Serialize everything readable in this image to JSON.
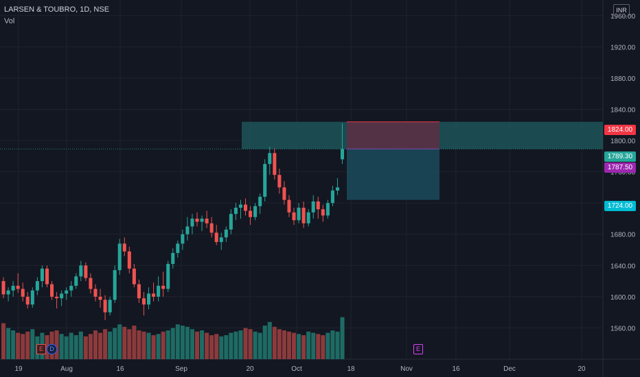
{
  "header": {
    "symbol_line": "LARSEN & TOUBRO, 1D, NSE",
    "vol_label": "Vol"
  },
  "currency_label": "INR",
  "colors": {
    "background": "#131722",
    "up": "#26a69a",
    "down": "#ef5350",
    "vol_up": "#1e6b64",
    "vol_down": "#8c3a3c",
    "target_zone": "#1f5d60",
    "stop_zone": "#5a3045",
    "accent_purple": "#9c27b0"
  },
  "y_axis": {
    "min": 1520,
    "max": 1980,
    "ticks": [
      "1560.00",
      "1600.00",
      "1640.00",
      "1680.00",
      "1720.00",
      "1760.00",
      "1800.00",
      "1840.00",
      "1880.00",
      "1920.00",
      "1960.00"
    ]
  },
  "x_axis": {
    "ticks": [
      "19",
      "Aug",
      "16",
      "Sep",
      "20",
      "Oct",
      "18",
      "Nov",
      "16",
      "Dec",
      "20"
    ]
  },
  "price_tags": [
    {
      "label": "1824.00",
      "value": 1824,
      "color": "#f23645"
    },
    {
      "label": "1789.30",
      "value": 1789.3,
      "color": "#26a69a"
    },
    {
      "label": "1787.50",
      "value": 1787.5,
      "color": "#9c27b0"
    },
    {
      "label": "1724.00",
      "value": 1724,
      "color": "#00bcd4"
    }
  ],
  "events": [
    {
      "label": "E",
      "kind": "earnings",
      "color": "#ef5350"
    },
    {
      "label": "D",
      "kind": "dividend",
      "color": "#2962ff"
    },
    {
      "label": "E",
      "kind": "earnings-upcoming",
      "color": "#e040fb"
    }
  ],
  "chart_data": {
    "type": "candlestick",
    "title": "LARSEN & TOUBRO, 1D, NSE",
    "ylim": [
      1520,
      1980
    ],
    "candles": [
      [
        1620,
        1625,
        1598,
        1603
      ],
      [
        1603,
        1612,
        1594,
        1608
      ],
      [
        1608,
        1620,
        1600,
        1614
      ],
      [
        1614,
        1630,
        1605,
        1610
      ],
      [
        1610,
        1618,
        1594,
        1600
      ],
      [
        1600,
        1606,
        1585,
        1590
      ],
      [
        1590,
        1612,
        1586,
        1608
      ],
      [
        1608,
        1625,
        1602,
        1620
      ],
      [
        1620,
        1640,
        1612,
        1636
      ],
      [
        1636,
        1640,
        1612,
        1616
      ],
      [
        1616,
        1620,
        1596,
        1600
      ],
      [
        1600,
        1606,
        1585,
        1598
      ],
      [
        1598,
        1608,
        1588,
        1604
      ],
      [
        1604,
        1612,
        1596,
        1608
      ],
      [
        1608,
        1620,
        1600,
        1614
      ],
      [
        1614,
        1630,
        1610,
        1626
      ],
      [
        1626,
        1646,
        1620,
        1640
      ],
      [
        1640,
        1644,
        1620,
        1624
      ],
      [
        1624,
        1630,
        1604,
        1610
      ],
      [
        1610,
        1616,
        1594,
        1600
      ],
      [
        1600,
        1610,
        1586,
        1596
      ],
      [
        1596,
        1602,
        1570,
        1580
      ],
      [
        1580,
        1600,
        1576,
        1596
      ],
      [
        1596,
        1640,
        1592,
        1634
      ],
      [
        1634,
        1674,
        1628,
        1668
      ],
      [
        1668,
        1676,
        1652,
        1658
      ],
      [
        1658,
        1664,
        1630,
        1636
      ],
      [
        1636,
        1642,
        1612,
        1616
      ],
      [
        1616,
        1622,
        1592,
        1598
      ],
      [
        1598,
        1606,
        1576,
        1590
      ],
      [
        1590,
        1612,
        1584,
        1604
      ],
      [
        1604,
        1618,
        1594,
        1600
      ],
      [
        1600,
        1626,
        1594,
        1614
      ],
      [
        1614,
        1632,
        1600,
        1610
      ],
      [
        1610,
        1646,
        1606,
        1642
      ],
      [
        1642,
        1662,
        1636,
        1656
      ],
      [
        1656,
        1672,
        1650,
        1668
      ],
      [
        1668,
        1686,
        1660,
        1680
      ],
      [
        1680,
        1702,
        1672,
        1690
      ],
      [
        1690,
        1706,
        1680,
        1700
      ],
      [
        1700,
        1708,
        1690,
        1696
      ],
      [
        1696,
        1704,
        1684,
        1700
      ],
      [
        1700,
        1710,
        1688,
        1694
      ],
      [
        1694,
        1702,
        1676,
        1682
      ],
      [
        1682,
        1692,
        1666,
        1670
      ],
      [
        1670,
        1682,
        1660,
        1676
      ],
      [
        1676,
        1690,
        1670,
        1686
      ],
      [
        1686,
        1712,
        1680,
        1706
      ],
      [
        1706,
        1720,
        1698,
        1714
      ],
      [
        1714,
        1724,
        1700,
        1718
      ],
      [
        1718,
        1726,
        1704,
        1710
      ],
      [
        1710,
        1716,
        1692,
        1702
      ],
      [
        1702,
        1720,
        1698,
        1716
      ],
      [
        1716,
        1732,
        1706,
        1728
      ],
      [
        1728,
        1776,
        1722,
        1770
      ],
      [
        1770,
        1792,
        1756,
        1784
      ],
      [
        1784,
        1790,
        1750,
        1756
      ],
      [
        1756,
        1764,
        1732,
        1740
      ],
      [
        1740,
        1748,
        1718,
        1724
      ],
      [
        1724,
        1730,
        1702,
        1708
      ],
      [
        1708,
        1714,
        1692,
        1698
      ],
      [
        1698,
        1720,
        1694,
        1714
      ],
      [
        1714,
        1722,
        1688,
        1694
      ],
      [
        1694,
        1712,
        1690,
        1708
      ],
      [
        1708,
        1730,
        1700,
        1722
      ],
      [
        1722,
        1728,
        1700,
        1712
      ],
      [
        1712,
        1718,
        1696,
        1704
      ],
      [
        1704,
        1724,
        1700,
        1720
      ],
      [
        1720,
        1742,
        1716,
        1736
      ],
      [
        1736,
        1752,
        1730,
        1740
      ],
      [
        1776,
        1822,
        1770,
        1789.3
      ]
    ],
    "volumes": [
      60,
      52,
      48,
      44,
      42,
      46,
      50,
      38,
      44,
      40,
      46,
      48,
      42,
      38,
      44,
      40,
      46,
      38,
      42,
      48,
      44,
      50,
      46,
      52,
      58,
      54,
      50,
      56,
      48,
      46,
      44,
      40,
      42,
      46,
      48,
      52,
      58,
      56,
      54,
      50,
      46,
      48,
      44,
      40,
      42,
      38,
      40,
      44,
      46,
      48,
      52,
      50,
      46,
      44,
      56,
      62,
      54,
      50,
      48,
      46,
      44,
      42,
      40,
      46,
      44,
      42,
      40,
      44,
      48,
      46,
      70
    ],
    "target_zone": {
      "top": 1824,
      "bottom": 1789.3
    },
    "position": {
      "stop": 1824,
      "entry": 1789.3,
      "target": 1724
    }
  }
}
